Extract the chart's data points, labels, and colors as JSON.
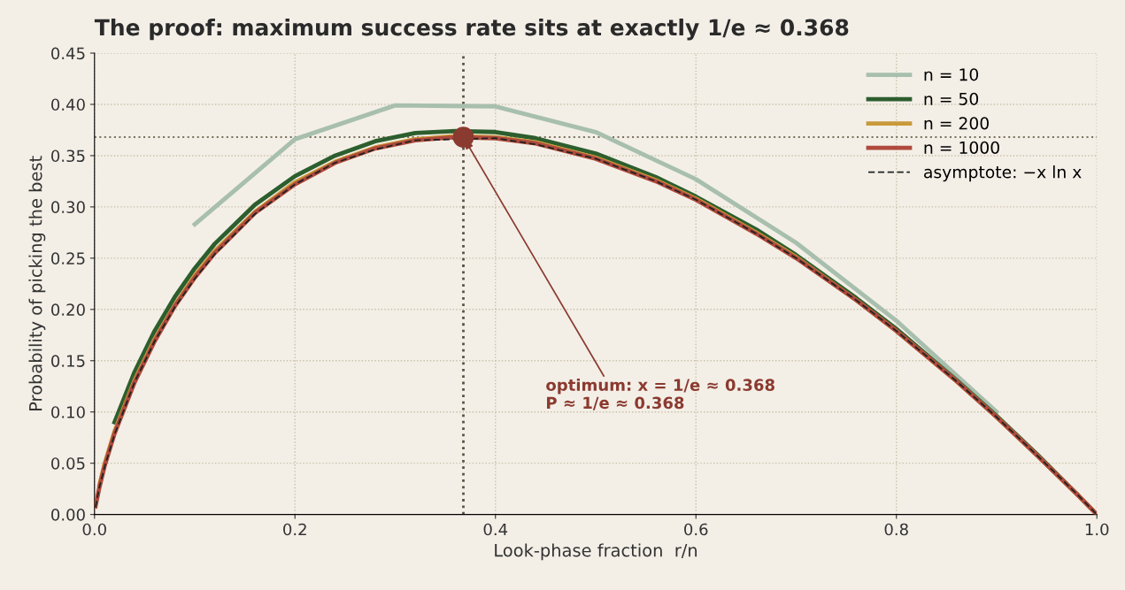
{
  "chart_data": {
    "type": "line",
    "title": "The proof: maximum success rate sits at exactly 1/e ≈ 0.368",
    "xlabel": "Look-phase fraction  r/n",
    "ylabel": "Probability of picking the best",
    "xlim": [
      0,
      1
    ],
    "ylim": [
      0,
      0.45
    ],
    "xticks": [
      {
        "value": 0,
        "label": "0.0"
      },
      0.2,
      0.4,
      0.6,
      0.8,
      {
        "value": 1,
        "label": "1.0"
      }
    ],
    "yticks": [
      {
        "value": 0,
        "label": "0.00"
      },
      0.05,
      {
        "value": 0.1,
        "label": "0.10"
      },
      0.15,
      {
        "value": 0.2,
        "label": "0.20"
      },
      0.25,
      {
        "value": 0.3,
        "label": "0.30"
      },
      0.35,
      {
        "value": 0.4,
        "label": "0.40"
      },
      0.45
    ],
    "grid": true,
    "legend": "top right",
    "marker": "none",
    "series": [
      {
        "name": "n = 10",
        "color": "#a8bfae",
        "line_style": "solid",
        "x": [
          0.1,
          0.2,
          0.3,
          0.4,
          0.5,
          0.6,
          0.7,
          0.8,
          0.9
        ],
        "values": [
          0.283,
          0.366,
          0.399,
          0.398,
          0.373,
          0.327,
          0.265,
          0.189,
          0.1
        ]
      },
      {
        "name": "n = 50",
        "color": "#2d5e2e",
        "line_style": "solid",
        "x": [
          0.02,
          0.04,
          0.06,
          0.08,
          0.1,
          0.12,
          0.16,
          0.2,
          0.24,
          0.28,
          0.32,
          0.36,
          0.4,
          0.44,
          0.5,
          0.56,
          0.6,
          0.66,
          0.7,
          0.76,
          0.8,
          0.86,
          0.9,
          0.94,
          0.98
        ],
        "values": [
          0.09,
          0.139,
          0.179,
          0.212,
          0.24,
          0.264,
          0.302,
          0.33,
          0.35,
          0.364,
          0.372,
          0.374,
          0.373,
          0.367,
          0.352,
          0.329,
          0.31,
          0.278,
          0.253,
          0.211,
          0.181,
          0.131,
          0.096,
          0.059,
          0.02
        ]
      },
      {
        "name": "n = 200",
        "color": "#c99a3b",
        "line_style": "solid",
        "x": [
          0.005,
          0.01,
          0.02,
          0.04,
          0.06,
          0.08,
          0.1,
          0.12,
          0.16,
          0.2,
          0.24,
          0.28,
          0.32,
          0.36,
          0.4,
          0.44,
          0.5,
          0.56,
          0.6,
          0.66,
          0.7,
          0.76,
          0.8,
          0.86,
          0.9,
          0.94,
          0.98,
          0.995
        ],
        "values": [
          0.029,
          0.049,
          0.081,
          0.131,
          0.171,
          0.204,
          0.233,
          0.257,
          0.295,
          0.324,
          0.344,
          0.358,
          0.366,
          0.369,
          0.368,
          0.363,
          0.348,
          0.326,
          0.308,
          0.275,
          0.251,
          0.209,
          0.179,
          0.13,
          0.095,
          0.058,
          0.02,
          0.005
        ]
      },
      {
        "name": "n = 1000",
        "color": "#b04a3c",
        "line_style": "solid",
        "x": [
          0.001,
          0.005,
          0.01,
          0.02,
          0.04,
          0.06,
          0.08,
          0.1,
          0.12,
          0.16,
          0.2,
          0.24,
          0.28,
          0.32,
          0.36,
          0.4,
          0.44,
          0.5,
          0.56,
          0.6,
          0.66,
          0.7,
          0.76,
          0.8,
          0.86,
          0.9,
          0.94,
          0.98,
          0.999
        ],
        "values": [
          0.008,
          0.027,
          0.047,
          0.079,
          0.129,
          0.169,
          0.203,
          0.231,
          0.255,
          0.294,
          0.322,
          0.343,
          0.357,
          0.365,
          0.368,
          0.367,
          0.362,
          0.347,
          0.325,
          0.307,
          0.274,
          0.25,
          0.209,
          0.179,
          0.13,
          0.095,
          0.058,
          0.02,
          0.001
        ]
      },
      {
        "name": "asymptote: −x ln x",
        "color": "#222222",
        "line_style": "dashed",
        "x": [
          0.001,
          0.005,
          0.01,
          0.02,
          0.04,
          0.06,
          0.08,
          0.1,
          0.12,
          0.16,
          0.2,
          0.24,
          0.28,
          0.32,
          0.4,
          0.44,
          0.5,
          0.56,
          0.6,
          0.66,
          0.7,
          0.76,
          0.8,
          0.86,
          0.9,
          0.94,
          0.98,
          1.0
        ],
        "values": [
          0.007,
          0.027,
          0.046,
          0.078,
          0.129,
          0.169,
          0.202,
          0.23,
          0.254,
          0.293,
          0.322,
          0.343,
          0.356,
          0.365,
          0.367,
          0.361,
          0.347,
          0.325,
          0.307,
          0.274,
          0.25,
          0.209,
          0.179,
          0.13,
          0.095,
          0.058,
          0.02,
          0.0
        ]
      },
      {
        "type": "scatter",
        "color": "#8b3a2f",
        "marker": "circle",
        "x": [
          0.368
        ],
        "values": [
          0.368
        ]
      }
    ],
    "ref_lines": [
      {
        "axis": "x",
        "value": 0.368,
        "color": "#5a5242",
        "line_style": "dotted"
      },
      {
        "axis": "y",
        "value": 0.368,
        "color": "#7a735f",
        "line_style": "dotted"
      }
    ],
    "annotations": [
      {
        "text": "optimum: x = 1/e ≈ 0.368\nP ≈ 1/e ≈ 0.368",
        "x": 0.368,
        "y": 0.368
      }
    ]
  }
}
